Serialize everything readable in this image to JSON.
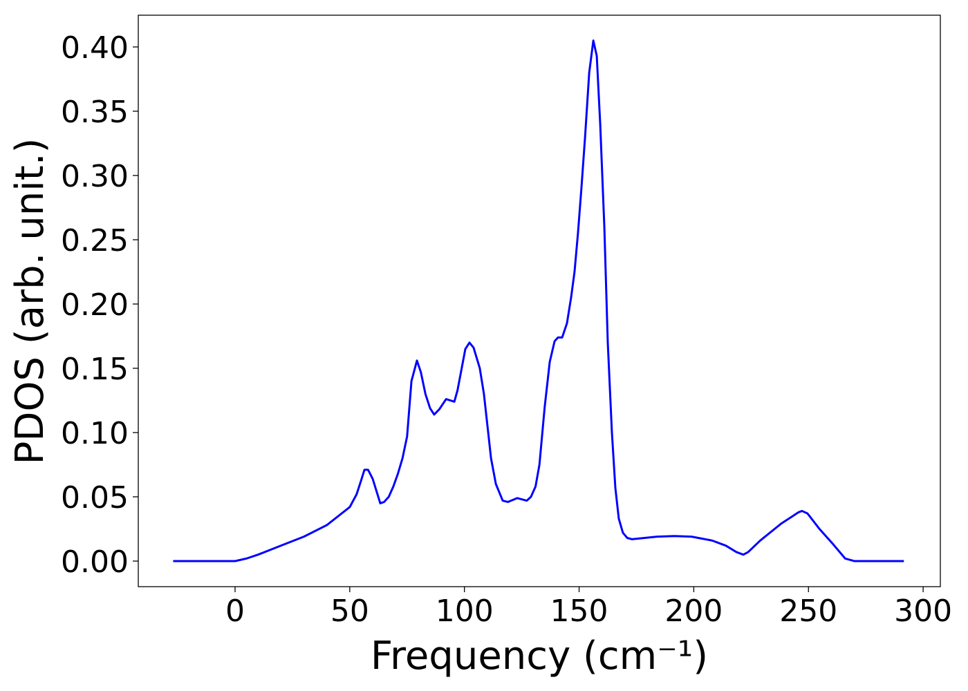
{
  "chart_data": {
    "type": "line",
    "x_label": "Frequency (cm⁻¹)",
    "y_label": "PDOS (arb. unit.)",
    "x": [
      -27,
      -10,
      0,
      5,
      10,
      20,
      30,
      40,
      50,
      53,
      55,
      56.4,
      58,
      60,
      63.3,
      65,
      67,
      69,
      71,
      73,
      75,
      76.9,
      79.3,
      81,
      83,
      85,
      86.8,
      89,
      92,
      95.6,
      97,
      100.4,
      102.2,
      104,
      106.7,
      108.5,
      111.6,
      113.7,
      116.7,
      119,
      123,
      127.2,
      129,
      131,
      132.7,
      135,
      137.2,
      139.3,
      140.8,
      142.6,
      144.7,
      146.5,
      148,
      149.5,
      151,
      152.6,
      154.4,
      156.2,
      157.7,
      159.2,
      161,
      162.5,
      164.3,
      165.8,
      167.3,
      169.1,
      171,
      173,
      184,
      191.5,
      199,
      208,
      214,
      218.6,
      221.6,
      223.7,
      229,
      238,
      245.7,
      247.2,
      249.6,
      254.8,
      260.8,
      266,
      270,
      280,
      291.6
    ],
    "series": [
      {
        "name": "PDOS",
        "color": "#0000ff",
        "values": [
          0,
          0,
          0,
          0.002,
          0.005,
          0.012,
          0.019,
          0.028,
          0.042,
          0.052,
          0.063,
          0.071,
          0.071,
          0.064,
          0.045,
          0.046,
          0.05,
          0.058,
          0.068,
          0.08,
          0.097,
          0.14,
          0.156,
          0.147,
          0.13,
          0.119,
          0.114,
          0.118,
          0.126,
          0.124,
          0.133,
          0.165,
          0.17,
          0.166,
          0.15,
          0.13,
          0.08,
          0.06,
          0.047,
          0.046,
          0.049,
          0.047,
          0.05,
          0.058,
          0.075,
          0.12,
          0.155,
          0.171,
          0.174,
          0.174,
          0.185,
          0.205,
          0.225,
          0.255,
          0.29,
          0.33,
          0.38,
          0.405,
          0.393,
          0.34,
          0.26,
          0.17,
          0.1,
          0.057,
          0.033,
          0.022,
          0.018,
          0.017,
          0.019,
          0.0195,
          0.019,
          0.016,
          0.012,
          0.007,
          0.005,
          0.007,
          0.016,
          0.029,
          0.038,
          0.039,
          0.037,
          0.025,
          0.013,
          0.002,
          0,
          0,
          0
        ]
      }
    ],
    "xlim": [
      -42.2,
      307.5
    ],
    "ylim": [
      -0.0199,
      0.4247
    ],
    "xticks": [
      0,
      50,
      100,
      150,
      200,
      250,
      300
    ],
    "yticks": [
      {
        "value": 0,
        "label": "0.00"
      },
      {
        "value": 0.05,
        "label": "0.05"
      },
      {
        "value": 0.1,
        "label": "0.10"
      },
      {
        "value": 0.15,
        "label": "0.15"
      },
      {
        "value": 0.2,
        "label": "0.20"
      },
      {
        "value": 0.25,
        "label": "0.25"
      },
      {
        "value": 0.3,
        "label": "0.30"
      },
      {
        "value": 0.35,
        "label": "0.35"
      },
      {
        "value": 0.4,
        "label": "0.40"
      }
    ]
  }
}
